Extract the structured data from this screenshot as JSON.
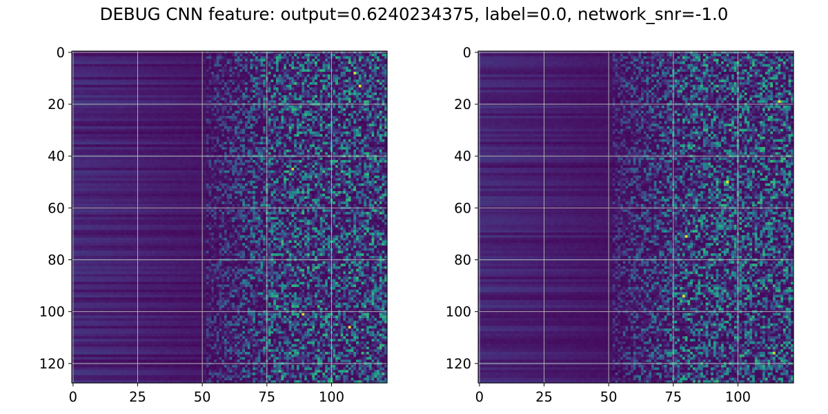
{
  "title": "DEBUG CNN feature: output=0.6240234375, label=0.0, network_snr=-1.0",
  "chart_data": [
    {
      "type": "heatmap",
      "rows": 128,
      "cols": 122,
      "colormap": "viridis",
      "xlim": [
        -0.5,
        121.5
      ],
      "ylim": [
        127.5,
        -0.5
      ],
      "y_inverted": true,
      "xticks": [
        0,
        25,
        50,
        75,
        100
      ],
      "xtick_labels": [
        "0",
        "25",
        "50",
        "75",
        "100"
      ],
      "yticks": [
        0,
        20,
        40,
        60,
        80,
        100,
        120
      ],
      "ytick_labels": [
        "0",
        "20",
        "40",
        "60",
        "80",
        "100",
        "120"
      ],
      "grid": true,
      "pattern": "low uniform values across columns 0-50 with horizontal row banding; noisy speckled values increasing to the right from about column 55",
      "hot_cells": [
        [
          45,
          85
        ],
        [
          13,
          111
        ],
        [
          106,
          107
        ],
        [
          101,
          89
        ],
        [
          8,
          109
        ]
      ]
    },
    {
      "type": "heatmap",
      "rows": 128,
      "cols": 122,
      "colormap": "viridis",
      "xlim": [
        -0.5,
        121.5
      ],
      "ylim": [
        127.5,
        -0.5
      ],
      "y_inverted": true,
      "xticks": [
        0,
        25,
        50,
        75,
        100
      ],
      "xtick_labels": [
        "0",
        "25",
        "50",
        "75",
        "100"
      ],
      "yticks": [
        0,
        20,
        40,
        60,
        80,
        100,
        120
      ],
      "ytick_labels": [
        "0",
        "20",
        "40",
        "60",
        "80",
        "100",
        "120"
      ],
      "grid": true,
      "pattern": "low uniform values across columns 0-50 with horizontal row banding; noisy speckled values increasing to the right from about column 55",
      "hot_cells": [
        [
          19,
          116
        ],
        [
          71,
          80
        ],
        [
          116,
          114
        ],
        [
          50,
          96
        ],
        [
          94,
          79
        ]
      ]
    }
  ]
}
